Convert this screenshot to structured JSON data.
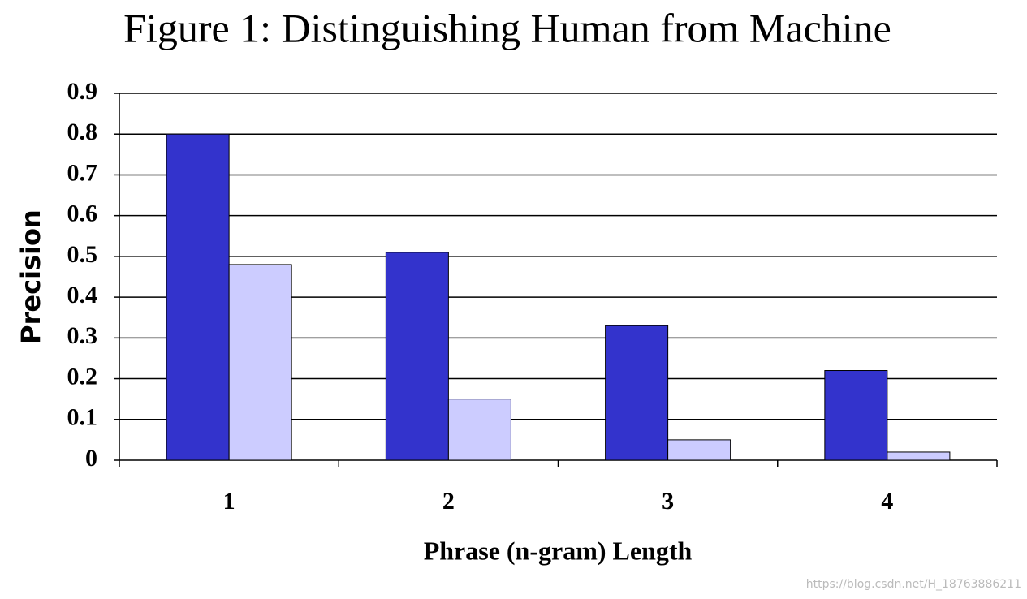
{
  "chart_data": {
    "type": "bar",
    "title": "Figure 1: Distinguishing Human from Machine",
    "x_label": "Phrase (n-gram) Length",
    "y_label": "Precision",
    "categories": [
      "1",
      "2",
      "3",
      "4"
    ],
    "series": [
      {
        "color": "#3333cc",
        "values": [
          0.8,
          0.51,
          0.33,
          0.22
        ]
      },
      {
        "color": "#ccccff",
        "values": [
          0.48,
          0.15,
          0.05,
          0.02
        ]
      }
    ],
    "ylim": [
      0,
      0.9
    ],
    "yticks": [
      0,
      0.1,
      0.2,
      0.3,
      0.4,
      0.5,
      0.6,
      0.7,
      0.8,
      0.9
    ],
    "grid": true,
    "watermark": "https://blog.csdn.net/H_18763886211"
  }
}
